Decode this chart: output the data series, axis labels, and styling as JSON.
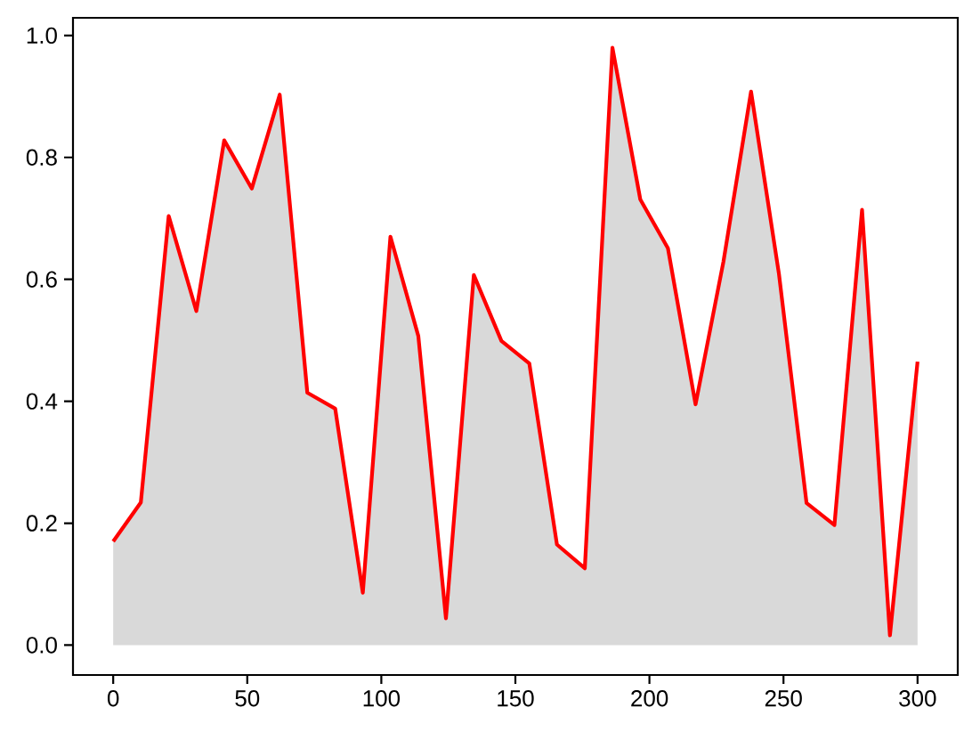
{
  "chart_data": {
    "type": "area",
    "x": [
      0,
      10.3,
      20.7,
      31,
      41.4,
      51.7,
      62.1,
      72.4,
      82.8,
      93.1,
      103.4,
      113.8,
      124.1,
      134.5,
      144.8,
      155.2,
      165.5,
      175.9,
      186.2,
      196.6,
      206.9,
      217.2,
      227.6,
      237.9,
      248.3,
      258.6,
      269,
      279.3,
      289.7,
      300
    ],
    "series": [
      {
        "color": "#ff0000",
        "values": [
          0.17,
          0.234,
          0.704,
          0.548,
          0.828,
          0.749,
          0.903,
          0.414,
          0.388,
          0.086,
          0.67,
          0.507,
          0.044,
          0.607,
          0.499,
          0.462,
          0.165,
          0.126,
          0.98,
          0.731,
          0.651,
          0.395,
          0.629,
          0.908,
          0.609,
          0.233,
          0.197,
          0.714,
          0.016,
          0.465
        ]
      }
    ],
    "xlim": [
      -15,
      315
    ],
    "ylim": [
      -0.049,
      1.029
    ],
    "xticks": [
      0,
      50,
      100,
      150,
      200,
      250,
      300
    ],
    "yticks": [
      {
        "value": 0,
        "label": "0.0"
      },
      {
        "value": 0.2,
        "label": "0.2"
      },
      {
        "value": 0.4,
        "label": "0.4"
      },
      {
        "value": 0.6,
        "label": "0.6"
      },
      {
        "value": 0.8,
        "label": "0.8"
      },
      {
        "value": 1,
        "label": "1.0"
      }
    ]
  }
}
